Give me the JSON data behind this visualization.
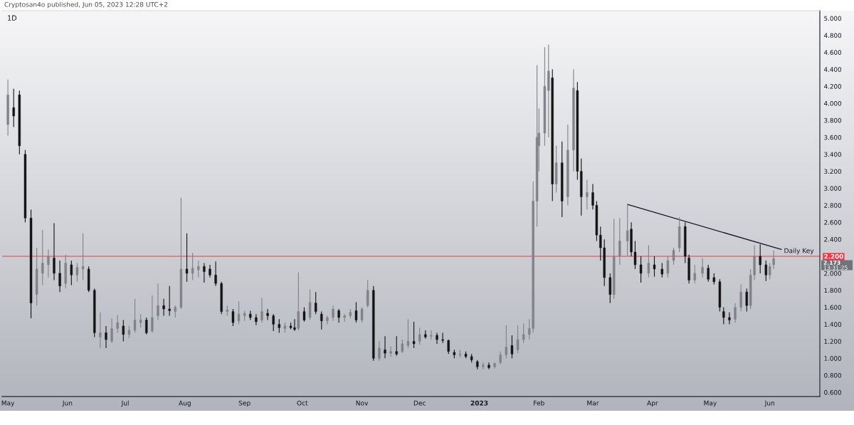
{
  "chart_data": {
    "type": "candlestick",
    "title": "1D",
    "subtitle": "Cryptosan4o published, Jun 05, 2023 12:28 UTC+2",
    "x": [
      "2022-05-01",
      "2022-05-04",
      "2022-05-07",
      "2022-05-10",
      "2022-05-13",
      "2022-05-16",
      "2022-05-19",
      "2022-05-22",
      "2022-05-25",
      "2022-05-28",
      "2022-05-31",
      "2022-06-03",
      "2022-06-06",
      "2022-06-09",
      "2022-06-12",
      "2022-06-15",
      "2022-06-18",
      "2022-06-21",
      "2022-06-24",
      "2022-06-27",
      "2022-06-30",
      "2022-07-03",
      "2022-07-06",
      "2022-07-09",
      "2022-07-12",
      "2022-07-15",
      "2022-07-18",
      "2022-07-21",
      "2022-07-24",
      "2022-07-27",
      "2022-07-30",
      "2022-08-02",
      "2022-08-05",
      "2022-08-08",
      "2022-08-11",
      "2022-08-14",
      "2022-08-17",
      "2022-08-20",
      "2022-08-23",
      "2022-08-26",
      "2022-08-29",
      "2022-09-01",
      "2022-09-04",
      "2022-09-07",
      "2022-09-10",
      "2022-09-13",
      "2022-09-16",
      "2022-09-19",
      "2022-09-22",
      "2022-09-25",
      "2022-09-27",
      "2022-09-29",
      "2022-10-02",
      "2022-10-05",
      "2022-10-08",
      "2022-10-11",
      "2022-10-14",
      "2022-10-17",
      "2022-10-20",
      "2022-10-23",
      "2022-10-26",
      "2022-10-29",
      "2022-11-01",
      "2022-11-04",
      "2022-11-07",
      "2022-11-10",
      "2022-11-13",
      "2022-11-16",
      "2022-11-19",
      "2022-11-22",
      "2022-11-25",
      "2022-11-28",
      "2022-12-01",
      "2022-12-04",
      "2022-12-07",
      "2022-12-10",
      "2022-12-13",
      "2022-12-16",
      "2022-12-19",
      "2022-12-22",
      "2022-12-25",
      "2022-12-28",
      "2022-12-31",
      "2023-01-03",
      "2023-01-06",
      "2023-01-09",
      "2023-01-12",
      "2023-01-15",
      "2023-01-18",
      "2023-01-21",
      "2023-01-24",
      "2023-01-27",
      "2023-01-29",
      "2023-01-31",
      "2023-02-01",
      "2023-02-04",
      "2023-02-06",
      "2023-02-08",
      "2023-02-10",
      "2023-02-13",
      "2023-02-16",
      "2023-02-19",
      "2023-02-21",
      "2023-02-23",
      "2023-02-26",
      "2023-03-01",
      "2023-03-03",
      "2023-03-05",
      "2023-03-07",
      "2023-03-10",
      "2023-03-12",
      "2023-03-15",
      "2023-03-19",
      "2023-03-21",
      "2023-03-23",
      "2023-03-26",
      "2023-03-30",
      "2023-04-02",
      "2023-04-06",
      "2023-04-09",
      "2023-04-12",
      "2023-04-15",
      "2023-04-18",
      "2023-04-20",
      "2023-04-23",
      "2023-04-27",
      "2023-04-30",
      "2023-05-03",
      "2023-05-06",
      "2023-05-08",
      "2023-05-11",
      "2023-05-14",
      "2023-05-17",
      "2023-05-20",
      "2023-05-22",
      "2023-05-24",
      "2023-05-27",
      "2023-05-30",
      "2023-06-01",
      "2023-06-03"
    ],
    "ohlc": [
      [
        3.75,
        4.28,
        3.62,
        4.1
      ],
      [
        3.95,
        4.17,
        3.72,
        3.85
      ],
      [
        4.1,
        4.15,
        3.4,
        3.5
      ],
      [
        3.4,
        3.45,
        2.6,
        2.65
      ],
      [
        2.65,
        2.75,
        1.47,
        1.65
      ],
      [
        1.75,
        2.3,
        1.62,
        2.05
      ],
      [
        2.0,
        2.51,
        1.86,
        2.12
      ],
      [
        2.1,
        2.28,
        1.95,
        2.2
      ],
      [
        2.18,
        2.59,
        1.92,
        2.0
      ],
      [
        2.0,
        2.15,
        1.78,
        1.85
      ],
      [
        1.88,
        2.22,
        1.82,
        2.12
      ],
      [
        2.1,
        2.15,
        1.86,
        1.98
      ],
      [
        1.98,
        2.12,
        1.9,
        2.07
      ],
      [
        2.05,
        2.47,
        1.92,
        2.08
      ],
      [
        2.05,
        2.08,
        1.78,
        1.8
      ],
      [
        1.8,
        1.82,
        1.25,
        1.3
      ],
      [
        1.25,
        1.54,
        1.12,
        1.3
      ],
      [
        1.3,
        1.38,
        1.12,
        1.22
      ],
      [
        1.2,
        1.47,
        1.18,
        1.35
      ],
      [
        1.35,
        1.51,
        1.3,
        1.42
      ],
      [
        1.38,
        1.45,
        1.2,
        1.28
      ],
      [
        1.28,
        1.38,
        1.24,
        1.33
      ],
      [
        1.33,
        1.7,
        1.3,
        1.45
      ],
      [
        1.42,
        1.52,
        1.36,
        1.45
      ],
      [
        1.45,
        1.48,
        1.28,
        1.3
      ],
      [
        1.32,
        1.74,
        1.3,
        1.48
      ],
      [
        1.5,
        1.88,
        1.45,
        1.62
      ],
      [
        1.62,
        1.7,
        1.5,
        1.58
      ],
      [
        1.58,
        1.85,
        1.5,
        1.56
      ],
      [
        1.55,
        1.62,
        1.48,
        1.6
      ],
      [
        1.6,
        2.89,
        1.58,
        2.05
      ],
      [
        2.05,
        2.47,
        1.9,
        2.0
      ],
      [
        2.0,
        2.24,
        1.92,
        2.06
      ],
      [
        2.04,
        2.15,
        1.95,
        2.08
      ],
      [
        2.08,
        2.12,
        1.89,
        2.02
      ],
      [
        2.05,
        2.1,
        1.95,
        1.98
      ],
      [
        1.98,
        2.14,
        1.85,
        1.88
      ],
      [
        1.88,
        1.9,
        1.52,
        1.55
      ],
      [
        1.55,
        1.62,
        1.5,
        1.57
      ],
      [
        1.55,
        1.58,
        1.38,
        1.42
      ],
      [
        1.44,
        1.67,
        1.4,
        1.52
      ],
      [
        1.5,
        1.56,
        1.44,
        1.53
      ],
      [
        1.52,
        1.56,
        1.45,
        1.48
      ],
      [
        1.48,
        1.52,
        1.39,
        1.43
      ],
      [
        1.45,
        1.71,
        1.42,
        1.55
      ],
      [
        1.53,
        1.58,
        1.45,
        1.5
      ],
      [
        1.5,
        1.52,
        1.32,
        1.4
      ],
      [
        1.4,
        1.46,
        1.3,
        1.36
      ],
      [
        1.35,
        1.42,
        1.3,
        1.38
      ],
      [
        1.38,
        1.42,
        1.34,
        1.36
      ],
      [
        1.36,
        1.46,
        1.32,
        1.34
      ],
      [
        1.35,
        2.01,
        1.33,
        1.55
      ],
      [
        1.55,
        1.6,
        1.43,
        1.45
      ],
      [
        1.48,
        1.81,
        1.45,
        1.66
      ],
      [
        1.65,
        1.78,
        1.52,
        1.55
      ],
      [
        1.52,
        1.55,
        1.34,
        1.44
      ],
      [
        1.44,
        1.5,
        1.4,
        1.48
      ],
      [
        1.48,
        1.62,
        1.44,
        1.58
      ],
      [
        1.56,
        1.58,
        1.42,
        1.48
      ],
      [
        1.48,
        1.52,
        1.43,
        1.5
      ],
      [
        1.5,
        1.58,
        1.47,
        1.54
      ],
      [
        1.56,
        1.66,
        1.42,
        1.45
      ],
      [
        1.45,
        1.6,
        1.42,
        1.58
      ],
      [
        1.62,
        1.92,
        1.6,
        1.8
      ],
      [
        1.8,
        1.85,
        0.97,
        1.0
      ],
      [
        1.0,
        1.2,
        0.97,
        1.12
      ],
      [
        1.1,
        1.26,
        1.0,
        1.06
      ],
      [
        1.06,
        1.14,
        1.02,
        1.08
      ],
      [
        1.08,
        1.26,
        1.03,
        1.05
      ],
      [
        1.08,
        1.22,
        1.06,
        1.17
      ],
      [
        1.15,
        1.46,
        1.12,
        1.2
      ],
      [
        1.2,
        1.43,
        1.12,
        1.17
      ],
      [
        1.2,
        1.36,
        1.16,
        1.28
      ],
      [
        1.28,
        1.33,
        1.23,
        1.25
      ],
      [
        1.26,
        1.33,
        1.22,
        1.27
      ],
      [
        1.27,
        1.3,
        1.17,
        1.22
      ],
      [
        1.22,
        1.3,
        1.18,
        1.21
      ],
      [
        1.21,
        1.22,
        1.05,
        1.08
      ],
      [
        1.07,
        1.1,
        1.0,
        1.04
      ],
      [
        1.04,
        1.1,
        1.01,
        1.05
      ],
      [
        1.05,
        1.08,
        1.0,
        1.02
      ],
      [
        1.02,
        1.05,
        0.95,
        0.98
      ],
      [
        0.96,
        0.98,
        0.87,
        0.9
      ],
      [
        0.9,
        0.95,
        0.87,
        0.92
      ],
      [
        0.92,
        0.95,
        0.87,
        0.89
      ],
      [
        0.9,
        0.95,
        0.88,
        0.94
      ],
      [
        0.95,
        1.08,
        0.93,
        1.04
      ],
      [
        1.04,
        1.39,
        1.0,
        1.13
      ],
      [
        1.15,
        1.27,
        1.0,
        1.05
      ],
      [
        1.1,
        1.39,
        1.06,
        1.22
      ],
      [
        1.22,
        1.41,
        1.18,
        1.28
      ],
      [
        1.28,
        1.46,
        1.22,
        1.35
      ],
      [
        1.35,
        3.08,
        1.3,
        2.85
      ],
      [
        2.85,
        4.45,
        2.55,
        3.6
      ],
      [
        3.5,
        3.94,
        3.2,
        3.65
      ],
      [
        3.65,
        4.66,
        3.5,
        4.2
      ],
      [
        4.15,
        4.69,
        3.6,
        4.38
      ],
      [
        4.3,
        4.4,
        2.85,
        3.05
      ],
      [
        3.05,
        3.5,
        2.95,
        3.3
      ],
      [
        3.3,
        3.55,
        2.66,
        2.85
      ],
      [
        2.9,
        3.75,
        2.8,
        3.45
      ],
      [
        3.45,
        4.4,
        3.2,
        4.18
      ],
      [
        4.15,
        4.25,
        3.1,
        3.2
      ],
      [
        3.2,
        3.35,
        2.68,
        2.9
      ],
      [
        2.9,
        3.1,
        2.75,
        2.95
      ],
      [
        2.95,
        3.05,
        2.75,
        2.8
      ],
      [
        2.8,
        2.85,
        2.38,
        2.45
      ],
      [
        2.45,
        2.55,
        2.15,
        2.3
      ],
      [
        2.3,
        2.4,
        1.85,
        1.95
      ],
      [
        1.95,
        2.0,
        1.65,
        1.75
      ],
      [
        1.75,
        2.64,
        1.7,
        2.2
      ],
      [
        2.2,
        2.65,
        2.1,
        2.38
      ],
      [
        2.38,
        2.81,
        2.2,
        2.5
      ],
      [
        2.52,
        2.6,
        2.2,
        2.25
      ],
      [
        2.25,
        2.38,
        2.05,
        2.1
      ],
      [
        2.1,
        2.2,
        1.89,
        2.0
      ],
      [
        2.0,
        2.33,
        1.95,
        2.12
      ],
      [
        2.1,
        2.2,
        1.96,
        2.05
      ],
      [
        2.05,
        2.12,
        1.95,
        1.99
      ],
      [
        2.0,
        2.2,
        1.95,
        2.15
      ],
      [
        2.15,
        2.3,
        2.1,
        2.27
      ],
      [
        2.3,
        2.66,
        2.25,
        2.55
      ],
      [
        2.55,
        2.6,
        2.12,
        2.2
      ],
      [
        2.18,
        2.22,
        1.88,
        1.92
      ],
      [
        1.92,
        2.1,
        1.88,
        2.0
      ],
      [
        2.0,
        2.18,
        1.95,
        2.07
      ],
      [
        2.06,
        2.1,
        1.9,
        1.93
      ],
      [
        1.95,
        2.0,
        1.87,
        1.9
      ],
      [
        1.9,
        1.93,
        1.55,
        1.6
      ],
      [
        1.55,
        1.6,
        1.4,
        1.48
      ],
      [
        1.48,
        1.54,
        1.4,
        1.45
      ],
      [
        1.46,
        1.65,
        1.42,
        1.6
      ],
      [
        1.6,
        1.87,
        1.55,
        1.78
      ],
      [
        1.78,
        1.82,
        1.55,
        1.62
      ],
      [
        1.62,
        2.05,
        1.58,
        1.98
      ],
      [
        1.98,
        2.33,
        1.92,
        2.2
      ],
      [
        2.2,
        2.34,
        2.0,
        2.1
      ],
      [
        2.1,
        2.15,
        1.91,
        1.98
      ],
      [
        1.98,
        2.12,
        1.93,
        2.08
      ],
      [
        2.1,
        2.27,
        2.05,
        2.173
      ]
    ],
    "colors": [
      "#808288",
      "#131313",
      "#131313",
      "#131313",
      "#131313",
      "#808288",
      "#808288",
      "#808288",
      "#131313",
      "#131313",
      "#808288",
      "#131313",
      "#808288",
      "#808288",
      "#131313",
      "#131313",
      "#808288",
      "#131313",
      "#808288",
      "#808288",
      "#131313",
      "#808288",
      "#808288",
      "#808288",
      "#131313",
      "#808288",
      "#808288",
      "#131313",
      "#131313",
      "#808288",
      "#808288",
      "#131313",
      "#808288",
      "#808288",
      "#131313",
      "#131313",
      "#131313",
      "#131313",
      "#808288",
      "#131313",
      "#808288",
      "#808288",
      "#131313",
      "#131313",
      "#808288",
      "#131313",
      "#131313",
      "#131313",
      "#808288",
      "#131313",
      "#131313",
      "#808288",
      "#131313",
      "#808288",
      "#131313",
      "#131313",
      "#808288",
      "#808288",
      "#131313",
      "#808288",
      "#808288",
      "#131313",
      "#808288",
      "#808288",
      "#131313",
      "#808288",
      "#131313",
      "#808288",
      "#131313",
      "#808288",
      "#808288",
      "#131313",
      "#808288",
      "#131313",
      "#808288",
      "#131313",
      "#131313",
      "#131313",
      "#131313",
      "#808288",
      "#131313",
      "#131313",
      "#131313",
      "#808288",
      "#131313",
      "#808288",
      "#808288",
      "#808288",
      "#131313",
      "#808288",
      "#808288",
      "#808288",
      "#808288",
      "#808288",
      "#808288",
      "#808288",
      "#808288",
      "#131313",
      "#808288",
      "#131313",
      "#808288",
      "#808288",
      "#131313",
      "#131313",
      "#808288",
      "#131313",
      "#131313",
      "#131313",
      "#131313",
      "#131313",
      "#808288",
      "#808288",
      "#808288",
      "#131313",
      "#131313",
      "#131313",
      "#808288",
      "#131313",
      "#131313",
      "#808288",
      "#808288",
      "#808288",
      "#131313",
      "#131313",
      "#808288",
      "#808288",
      "#131313",
      "#131313",
      "#131313",
      "#131313",
      "#131313",
      "#808288",
      "#808288",
      "#131313",
      "#808288",
      "#808288",
      "#131313",
      "#131313",
      "#808288",
      "#808288"
    ],
    "series": [
      {
        "type": "line",
        "color": "#131722",
        "x": [
          "2023-03-19",
          "2023-06-07"
        ],
        "values": [
          2.81,
          2.28
        ]
      }
    ],
    "ref_lines": [
      {
        "axis": "y",
        "value": 2.2,
        "label": "Daily Key",
        "color": "#f23645"
      }
    ],
    "annotations": [
      "2.173",
      "13:31:25"
    ],
    "xlim": [
      "2022-04-28",
      "2023-06-27"
    ],
    "xticks": [
      {
        "value": "2022-05-01",
        "label": "May"
      },
      {
        "value": "2022-06-01",
        "label": "Jun"
      },
      {
        "value": "2022-07-01",
        "label": "Jul"
      },
      {
        "value": "2022-08-01",
        "label": "Aug"
      },
      {
        "value": "2022-09-01",
        "label": "Sep"
      },
      {
        "value": "2022-10-01",
        "label": "Oct"
      },
      {
        "value": "2022-11-01",
        "label": "Nov"
      },
      {
        "value": "2022-12-01",
        "label": "Dec"
      },
      {
        "value": "2023-01-01",
        "label": "2023"
      },
      {
        "value": "2023-02-01",
        "label": "Feb"
      },
      {
        "value": "2023-03-01",
        "label": "Mar"
      },
      {
        "value": "2023-04-01",
        "label": "Apr"
      },
      {
        "value": "2023-05-01",
        "label": "May"
      },
      {
        "value": "2023-06-01",
        "label": "Jun"
      }
    ],
    "ylim": [
      0.55,
      5.09
    ],
    "yticks": [
      {
        "value": 0.6,
        "label": "0.600"
      },
      {
        "value": 0.8,
        "label": "0.800"
      },
      {
        "value": 1.0,
        "label": "1.000"
      },
      {
        "value": 1.2,
        "label": "1.200"
      },
      {
        "value": 1.4,
        "label": "1.400"
      },
      {
        "value": 1.6,
        "label": "1.600"
      },
      {
        "value": 1.8,
        "label": "1.800"
      },
      {
        "value": 2.0,
        "label": "2.000"
      },
      {
        "value": 2.2,
        "label": "2.200"
      },
      {
        "value": 2.4,
        "label": "2.400"
      },
      {
        "value": 2.6,
        "label": "2.600"
      },
      {
        "value": 2.8,
        "label": "2.800"
      },
      {
        "value": 3.0,
        "label": "3.000"
      },
      {
        "value": 3.2,
        "label": "3.200"
      },
      {
        "value": 3.4,
        "label": "3.400"
      },
      {
        "value": 3.6,
        "label": "3.600"
      },
      {
        "value": 3.8,
        "label": "3.800"
      },
      {
        "value": 4.0,
        "label": "4.000"
      },
      {
        "value": 4.2,
        "label": "4.200"
      },
      {
        "value": 4.4,
        "label": "4.400"
      },
      {
        "value": 4.6,
        "label": "4.600"
      },
      {
        "value": 4.8,
        "label": "4.800"
      },
      {
        "value": 5.0,
        "label": "5.000"
      }
    ]
  }
}
